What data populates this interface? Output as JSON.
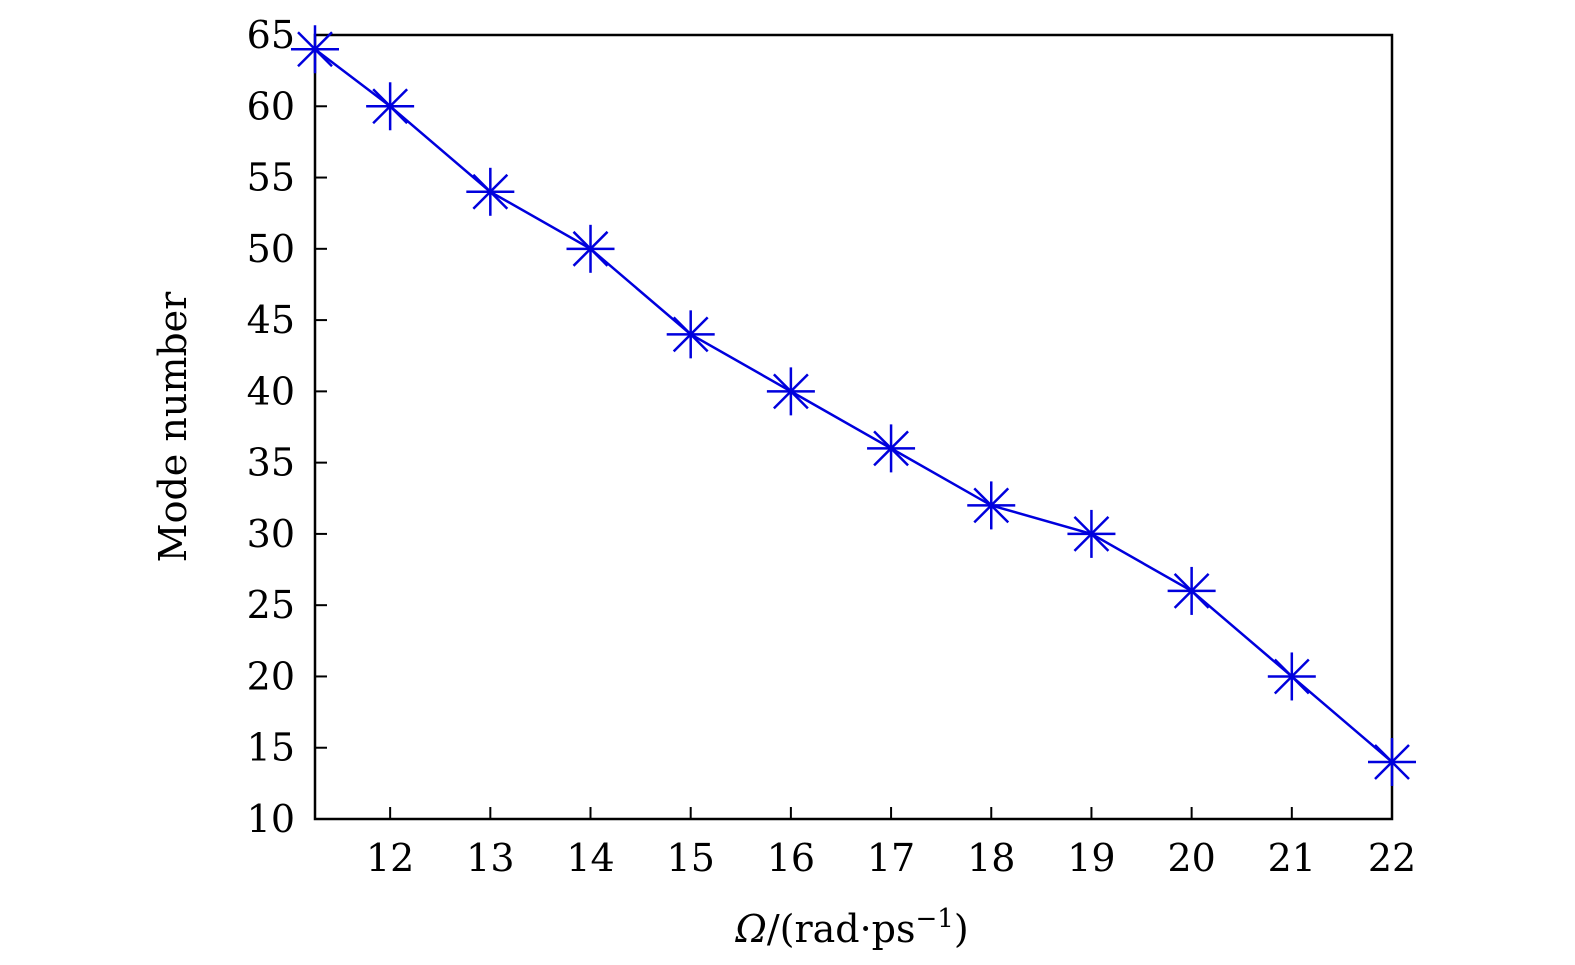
{
  "chart_data": {
    "type": "line",
    "title": "",
    "xlabel": {
      "symbol": "Ω",
      "rest": "/(rad·ps",
      "superscript": "−1",
      "close": ")"
    },
    "ylabel": "Mode number",
    "xlim": [
      11.25,
      22
    ],
    "ylim": [
      10,
      65
    ],
    "xticks": [
      12,
      13,
      14,
      15,
      16,
      17,
      18,
      19,
      20,
      21,
      22
    ],
    "yticks": [
      10,
      15,
      20,
      25,
      30,
      35,
      40,
      45,
      50,
      55,
      60,
      65
    ],
    "grid": false,
    "legend": "none",
    "series": [
      {
        "marker": "asterisk",
        "color": "#0000dd",
        "x": [
          11.25,
          12,
          13,
          14,
          15,
          16,
          17,
          18,
          19,
          20,
          21,
          22
        ],
        "y": [
          64,
          60,
          54,
          50,
          44,
          40,
          36,
          32,
          30,
          26,
          20,
          14
        ]
      }
    ]
  }
}
